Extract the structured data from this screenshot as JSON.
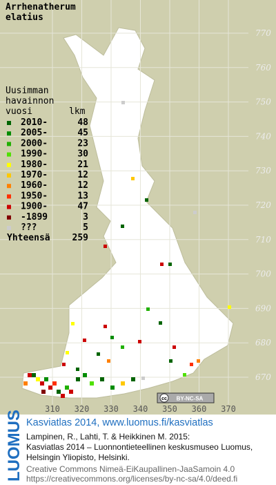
{
  "title": [
    "Arrhenatherum",
    "elatius"
  ],
  "legend": {
    "heading": [
      "Uusimman",
      "havainnon"
    ],
    "year_header": "vuosi",
    "count_header": "lkm",
    "rows": [
      {
        "label": "2010-",
        "count": 48,
        "color": "#006400"
      },
      {
        "label": "2005-",
        "count": 45,
        "color": "#008c00"
      },
      {
        "label": "2000-",
        "count": 23,
        "color": "#20b000"
      },
      {
        "label": "1990-",
        "count": 30,
        "color": "#50e000"
      },
      {
        "label": "1980-",
        "count": 21,
        "color": "#ffff00"
      },
      {
        "label": "1970-",
        "count": 12,
        "color": "#ffc800"
      },
      {
        "label": "1960-",
        "count": 12,
        "color": "#ff8000"
      },
      {
        "label": "1950-",
        "count": 13,
        "color": "#ff3000"
      },
      {
        "label": "1900-",
        "count": 47,
        "color": "#cc0000"
      },
      {
        "label": "-1899",
        "count": 3,
        "color": "#800000"
      },
      {
        "label": "???",
        "count": 5,
        "color": "#cccccc"
      }
    ],
    "total_label": "Yhteensä",
    "total": 259
  },
  "grid_north": [
    770,
    760,
    750,
    740,
    730,
    720,
    710,
    700,
    690,
    680,
    670
  ],
  "grid_east": [
    310,
    320,
    330,
    340,
    350,
    360,
    370
  ],
  "cc_badge": {
    "cc": "cc",
    "license": "BY-NC-SA"
  },
  "footer": {
    "logo": "LUOMUS",
    "heading": "Kasviatlas 2014, www.luomus.fi/kasviatlas",
    "citation": [
      "Lampinen, R., Lahti, T. & Heikkinen M. 2015:",
      "Kasviatlas 2014 – Luonnontieteellinen keskusmuseo Luomus,",
      "Helsingin Yliopisto, Helsinki."
    ],
    "license": [
      "Creative Commons Nimeä-EiKaupallinen-JaaSamoin 4.0",
      "https://creativecommons.org/licenses/by-nc-sa/4.0/deed.fi"
    ]
  }
}
